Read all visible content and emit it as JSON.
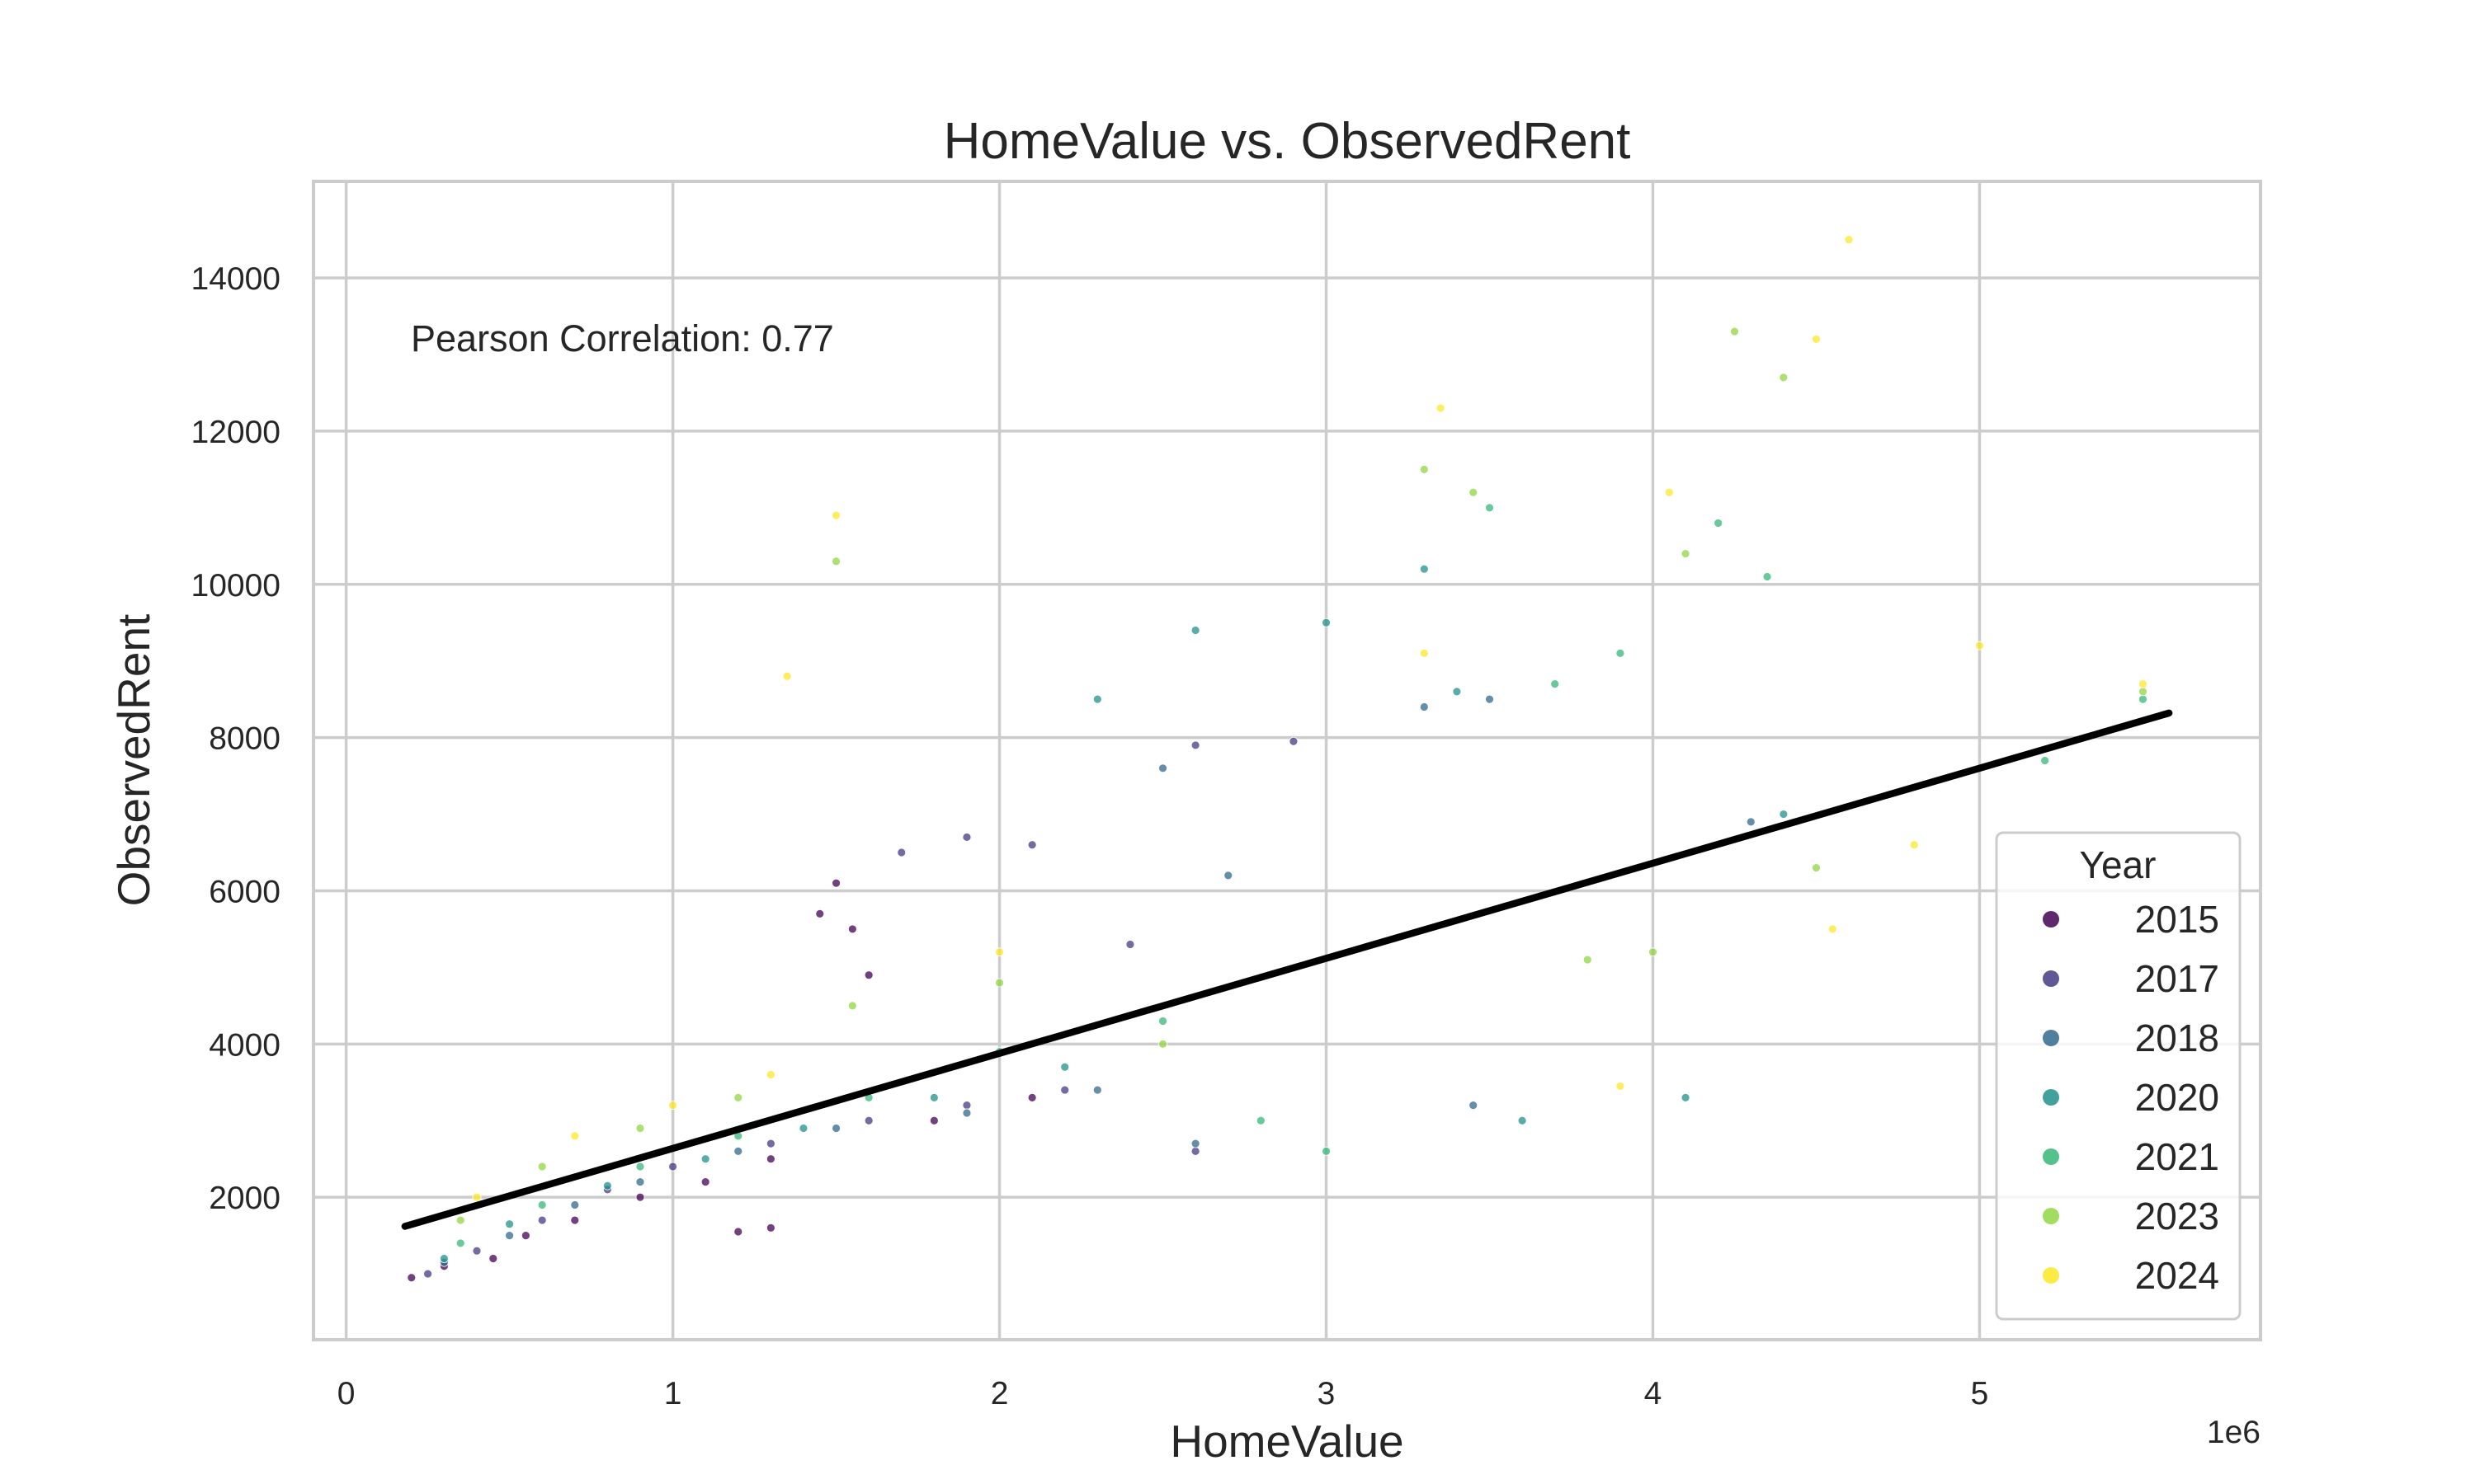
{
  "chart_data": {
    "type": "scatter",
    "title": "HomeValue vs. ObservedRent",
    "xlabel": "HomeValue",
    "ylabel": "ObservedRent",
    "x_offset_text": "1e6",
    "xlim": [
      -0.1,
      5.86
    ],
    "ylim": [
      140,
      15260
    ],
    "x_ticks": [
      0,
      1,
      2,
      3,
      4,
      5
    ],
    "x_tick_labels": [
      "0",
      "1",
      "2",
      "3",
      "4",
      "5"
    ],
    "y_ticks": [
      2000,
      4000,
      6000,
      8000,
      10000,
      12000,
      14000
    ],
    "y_tick_labels": [
      "2000",
      "4000",
      "6000",
      "8000",
      "10000",
      "12000",
      "14000"
    ],
    "grid": true,
    "annotation": "Pearson Correlation: 0.77",
    "legend": {
      "title": "Year",
      "placement": "lower-right",
      "entries": [
        "2015",
        "2017",
        "2018",
        "2020",
        "2021",
        "2023",
        "2024"
      ]
    },
    "series": [
      {
        "name": "2015",
        "color": "#440154",
        "points": [
          [
            0.2,
            950
          ],
          [
            0.3,
            1100
          ],
          [
            0.45,
            1200
          ],
          [
            0.55,
            1500
          ],
          [
            0.7,
            1700
          ],
          [
            0.9,
            2000
          ],
          [
            1.1,
            2200
          ],
          [
            1.3,
            2500
          ],
          [
            1.45,
            5700
          ],
          [
            1.5,
            6100
          ],
          [
            1.55,
            5500
          ],
          [
            1.6,
            4900
          ],
          [
            1.2,
            1550
          ],
          [
            1.3,
            1600
          ],
          [
            1.8,
            3000
          ],
          [
            2.1,
            3300
          ]
        ]
      },
      {
        "name": "2017",
        "color": "#443983",
        "points": [
          [
            0.25,
            1000
          ],
          [
            0.4,
            1300
          ],
          [
            0.6,
            1700
          ],
          [
            0.8,
            2100
          ],
          [
            1.0,
            2400
          ],
          [
            1.3,
            2700
          ],
          [
            1.6,
            3000
          ],
          [
            1.9,
            3200
          ],
          [
            2.2,
            3400
          ],
          [
            1.7,
            6500
          ],
          [
            1.9,
            6700
          ],
          [
            2.1,
            6600
          ],
          [
            2.4,
            5300
          ],
          [
            2.6,
            7900
          ],
          [
            2.9,
            7950
          ],
          [
            2.6,
            2600
          ]
        ]
      },
      {
        "name": "2018",
        "color": "#31688e",
        "points": [
          [
            0.3,
            1150
          ],
          [
            0.5,
            1500
          ],
          [
            0.7,
            1900
          ],
          [
            0.9,
            2200
          ],
          [
            1.2,
            2600
          ],
          [
            1.5,
            2900
          ],
          [
            1.9,
            3100
          ],
          [
            2.3,
            3400
          ],
          [
            2.6,
            2700
          ],
          [
            2.7,
            6200
          ],
          [
            2.5,
            7600
          ],
          [
            3.3,
            8400
          ],
          [
            3.5,
            8500
          ],
          [
            3.45,
            3200
          ],
          [
            4.3,
            6900
          ]
        ]
      },
      {
        "name": "2020",
        "color": "#21918c",
        "points": [
          [
            0.3,
            1200
          ],
          [
            0.5,
            1650
          ],
          [
            0.8,
            2150
          ],
          [
            1.1,
            2500
          ],
          [
            1.4,
            2900
          ],
          [
            1.8,
            3300
          ],
          [
            2.2,
            3700
          ],
          [
            2.3,
            8500
          ],
          [
            2.6,
            9400
          ],
          [
            3.0,
            9500
          ],
          [
            3.3,
            10200
          ],
          [
            3.4,
            8600
          ],
          [
            3.6,
            3000
          ],
          [
            4.1,
            3300
          ],
          [
            4.4,
            7000
          ]
        ]
      },
      {
        "name": "2021",
        "color": "#35b779",
        "points": [
          [
            0.35,
            1400
          ],
          [
            0.6,
            1900
          ],
          [
            0.9,
            2400
          ],
          [
            1.2,
            2800
          ],
          [
            1.6,
            3300
          ],
          [
            2.0,
            3900
          ],
          [
            2.5,
            4300
          ],
          [
            3.0,
            2600
          ],
          [
            3.5,
            11000
          ],
          [
            3.7,
            8700
          ],
          [
            4.2,
            10800
          ],
          [
            4.35,
            10100
          ],
          [
            5.5,
            8500
          ],
          [
            5.2,
            7700
          ],
          [
            3.9,
            9100
          ],
          [
            2.8,
            3000
          ]
        ]
      },
      {
        "name": "2023",
        "color": "#90d743",
        "points": [
          [
            0.35,
            1700
          ],
          [
            0.6,
            2400
          ],
          [
            0.9,
            2900
          ],
          [
            1.2,
            3300
          ],
          [
            1.5,
            10300
          ],
          [
            1.55,
            4500
          ],
          [
            2.0,
            4800
          ],
          [
            2.5,
            4000
          ],
          [
            3.3,
            11500
          ],
          [
            3.45,
            11200
          ],
          [
            4.1,
            10400
          ],
          [
            4.25,
            13300
          ],
          [
            4.4,
            12700
          ],
          [
            4.5,
            6300
          ],
          [
            5.5,
            8600
          ],
          [
            3.8,
            5100
          ],
          [
            4.0,
            5200
          ]
        ]
      },
      {
        "name": "2024",
        "color": "#fde725",
        "points": [
          [
            0.4,
            2000
          ],
          [
            0.7,
            2800
          ],
          [
            1.0,
            3200
          ],
          [
            1.3,
            3600
          ],
          [
            1.5,
            10900
          ],
          [
            1.35,
            8800
          ],
          [
            2.0,
            5200
          ],
          [
            3.35,
            12300
          ],
          [
            3.3,
            9100
          ],
          [
            4.05,
            11200
          ],
          [
            4.6,
            14500
          ],
          [
            4.5,
            13200
          ],
          [
            4.55,
            5500
          ],
          [
            4.8,
            6600
          ],
          [
            5.0,
            9200
          ],
          [
            5.5,
            8700
          ],
          [
            3.9,
            3450
          ]
        ]
      }
    ],
    "trendline": {
      "x": [
        0.18,
        5.58
      ],
      "y": [
        1620,
        8320
      ]
    }
  }
}
